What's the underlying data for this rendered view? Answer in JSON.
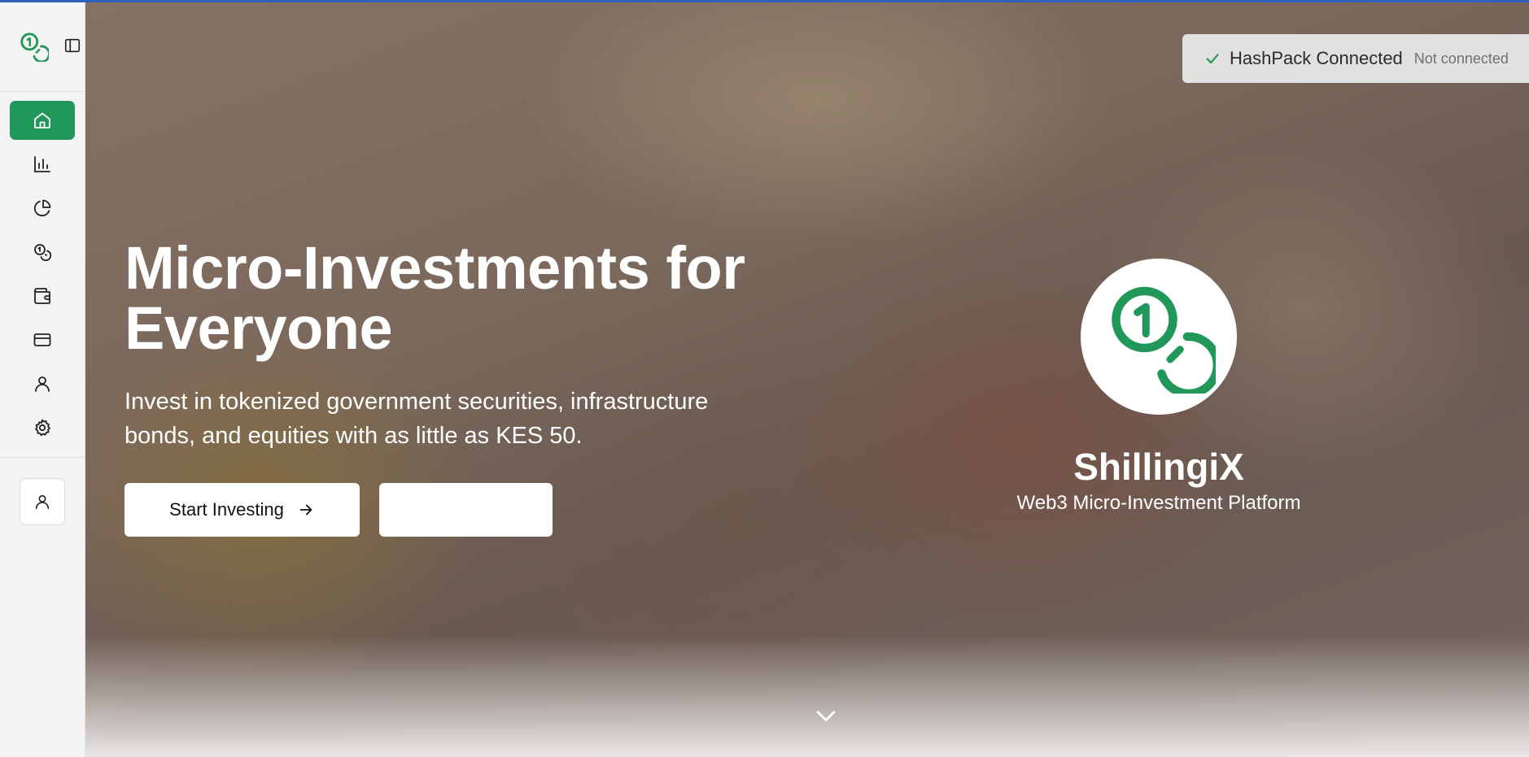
{
  "app": {
    "brand_name": "ShillingiX",
    "tagline": "Web3 Micro-Investment Platform",
    "accent_color": "#21975a"
  },
  "sidebar": {
    "items": [
      {
        "icon": "home-icon",
        "active": true
      },
      {
        "icon": "bar-chart-icon",
        "active": false
      },
      {
        "icon": "pie-chart-icon",
        "active": false
      },
      {
        "icon": "coins-icon",
        "active": false
      },
      {
        "icon": "wallet-icon",
        "active": false
      },
      {
        "icon": "credit-card-icon",
        "active": false
      },
      {
        "icon": "user-icon",
        "active": false
      },
      {
        "icon": "settings-icon",
        "active": false
      }
    ],
    "profile_icon": "user-icon"
  },
  "header": {
    "wallet_status": "HashPack Connected",
    "wallet_substatus": "Not connected",
    "theme_toggle_icon": "sun-icon"
  },
  "hero": {
    "title_line1": "Micro-Investments for",
    "title_line2": "Everyone",
    "subtitle_line1": "Invest in tokenized government securities, infrastructure",
    "subtitle_line2": "bonds, and equities with as little as KES 50.",
    "primary_cta": "Start Investing",
    "secondary_cta": ""
  }
}
